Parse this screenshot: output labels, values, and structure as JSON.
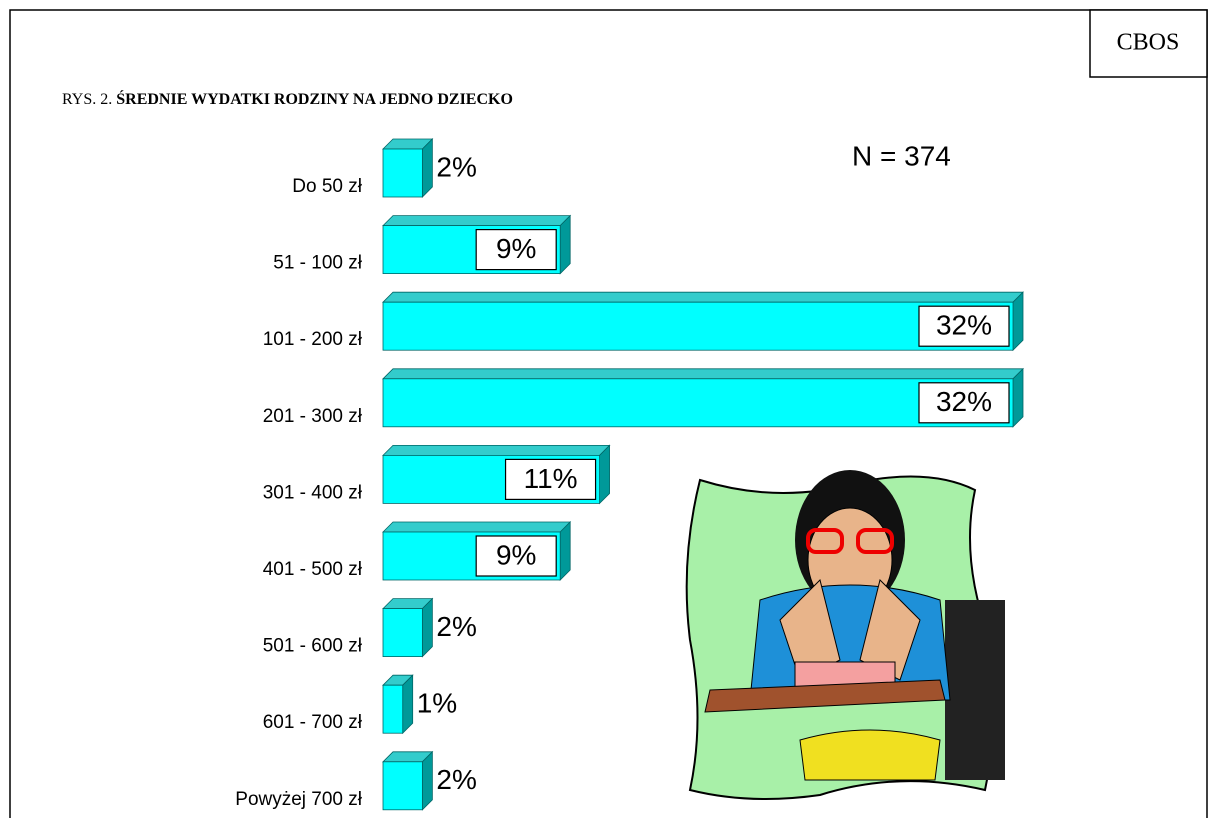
{
  "source": "CBOS",
  "chart_data": {
    "type": "bar3d_horizontal",
    "figure_label": "RYS. 2.",
    "title": "ŚREDNIE WYDATKI RODZINY NA JEDNO DZIECKO",
    "annotation": "N = 374",
    "categories": [
      "Do 50 zł",
      "51 - 100 zł",
      "101 - 200 zł",
      "201 - 300 zł",
      "301 - 400 zł",
      "401 - 500 zł",
      "501 - 600 zł",
      "601 - 700 zł",
      "Powyżej 700 zł"
    ],
    "values": [
      2,
      9,
      32,
      32,
      11,
      9,
      2,
      1,
      2
    ],
    "value_labels": [
      "2%",
      "9%",
      "32%",
      "32%",
      "11%",
      "9%",
      "2%",
      "1%",
      "2%"
    ],
    "color": "#00ffff"
  }
}
